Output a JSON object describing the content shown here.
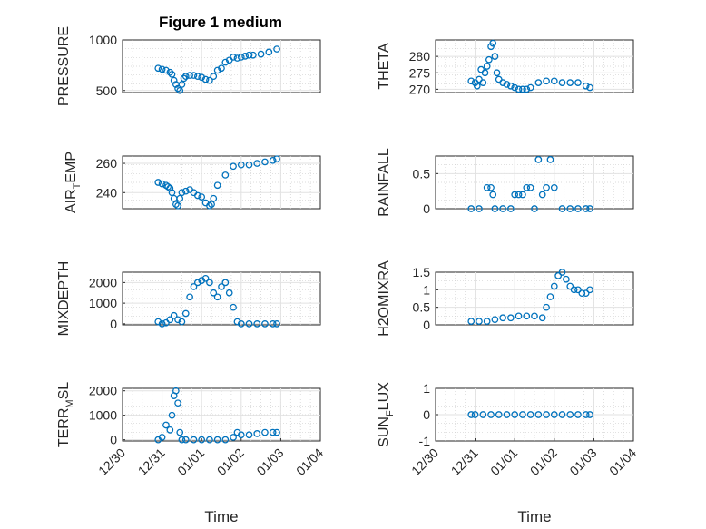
{
  "figure_title": "Figure 1 medium",
  "colors": {
    "marker": "#0072BD",
    "axis": "#262626",
    "grid": "#e2e2e2"
  },
  "chart_data": [
    {
      "type": "scatter",
      "ylabel": "PRESSURE",
      "ylabel_main": "PRESSURE",
      "ylabel_sub": "",
      "ylabel_tail": "",
      "ylim": [
        480,
        1000
      ],
      "yticks": [
        500,
        1000
      ],
      "ytick_labels": [
        "500",
        "1000"
      ],
      "xlim": [
        0,
        5
      ],
      "x_tick_labels": [],
      "title": "Figure 1 medium",
      "x": [
        0.9,
        1.0,
        1.1,
        1.2,
        1.25,
        1.3,
        1.35,
        1.4,
        1.45,
        1.5,
        1.55,
        1.6,
        1.7,
        1.8,
        1.9,
        2.0,
        2.1,
        2.2,
        2.3,
        2.4,
        2.5,
        2.6,
        2.7,
        2.8,
        2.9,
        3.0,
        3.1,
        3.2,
        3.3,
        3.5,
        3.7,
        3.9
      ],
      "y": [
        720,
        710,
        700,
        680,
        660,
        600,
        560,
        520,
        500,
        560,
        620,
        640,
        650,
        650,
        640,
        630,
        610,
        600,
        640,
        700,
        720,
        780,
        800,
        830,
        820,
        830,
        840,
        850,
        850,
        860,
        880,
        910
      ]
    },
    {
      "type": "scatter",
      "ylabel": "THETA",
      "ylabel_main": "THETA",
      "ylabel_sub": "",
      "ylabel_tail": "",
      "ylim": [
        269,
        285
      ],
      "yticks": [
        270,
        275,
        280
      ],
      "ytick_labels": [
        "270",
        "275",
        "280"
      ],
      "xlim": [
        0,
        5
      ],
      "x_tick_labels": [],
      "x": [
        0.9,
        1.0,
        1.05,
        1.1,
        1.15,
        1.2,
        1.25,
        1.3,
        1.35,
        1.4,
        1.45,
        1.5,
        1.55,
        1.6,
        1.7,
        1.8,
        1.9,
        2.0,
        2.1,
        2.2,
        2.3,
        2.4,
        2.6,
        2.8,
        3.0,
        3.2,
        3.4,
        3.6,
        3.8,
        3.9
      ],
      "y": [
        272.5,
        272,
        271,
        273,
        276,
        272,
        275,
        277,
        279,
        283,
        284,
        280,
        275,
        273,
        272,
        271.5,
        271,
        270.5,
        270,
        270,
        270,
        270.5,
        272,
        272.5,
        272.5,
        272,
        272,
        272,
        271,
        270.5
      ]
    },
    {
      "type": "scatter",
      "ylabel": "AIR_TEMP",
      "ylabel_main": "AIR",
      "ylabel_sub": "T",
      "ylabel_tail": "EMP",
      "ylim": [
        229,
        265
      ],
      "yticks": [
        240,
        260
      ],
      "ytick_labels": [
        "240",
        "260"
      ],
      "xlim": [
        0,
        5
      ],
      "x_tick_labels": [],
      "x": [
        0.9,
        1.0,
        1.1,
        1.15,
        1.2,
        1.25,
        1.3,
        1.35,
        1.4,
        1.45,
        1.5,
        1.6,
        1.7,
        1.8,
        1.9,
        2.0,
        2.1,
        2.2,
        2.25,
        2.3,
        2.4,
        2.6,
        2.8,
        3.0,
        3.2,
        3.4,
        3.6,
        3.8,
        3.9
      ],
      "y": [
        247,
        246,
        245,
        244,
        243,
        240,
        236,
        232,
        231,
        236,
        240,
        241,
        242,
        240,
        238,
        237,
        233,
        231,
        232,
        236,
        245,
        252,
        258,
        259,
        259,
        260,
        261,
        262,
        263
      ]
    },
    {
      "type": "scatter",
      "ylabel": "RAINFALL",
      "ylabel_main": "RAINFALL",
      "ylabel_sub": "",
      "ylabel_tail": "",
      "ylim": [
        0,
        0.75
      ],
      "yticks": [
        0,
        0.5
      ],
      "ytick_labels": [
        "0",
        "0.5"
      ],
      "xlim": [
        0,
        5
      ],
      "x_tick_labels": [],
      "x": [
        0.9,
        1.1,
        1.3,
        1.4,
        1.45,
        1.5,
        1.7,
        1.9,
        2.0,
        2.1,
        2.2,
        2.3,
        2.4,
        2.5,
        2.6,
        2.7,
        2.8,
        2.9,
        3.0,
        3.2,
        3.4,
        3.6,
        3.8,
        3.9
      ],
      "y": [
        0,
        0,
        0.3,
        0.3,
        0.2,
        0,
        0,
        0,
        0.2,
        0.2,
        0.2,
        0.3,
        0.3,
        0,
        0.7,
        0.2,
        0.3,
        0.7,
        0.3,
        0,
        0,
        0,
        0,
        0
      ]
    },
    {
      "type": "scatter",
      "ylabel": "MIXDEPTH",
      "ylabel_main": "MIXDEPTH",
      "ylabel_sub": "",
      "ylabel_tail": "",
      "ylim": [
        -50,
        2500
      ],
      "yticks": [
        0,
        1000,
        2000
      ],
      "ytick_labels": [
        "0",
        "1000",
        "2000"
      ],
      "xlim": [
        0,
        5
      ],
      "x_tick_labels": [],
      "x": [
        0.9,
        1.0,
        1.1,
        1.2,
        1.3,
        1.4,
        1.5,
        1.6,
        1.7,
        1.8,
        1.9,
        2.0,
        2.1,
        2.2,
        2.3,
        2.4,
        2.5,
        2.6,
        2.7,
        2.8,
        2.9,
        3.0,
        3.2,
        3.4,
        3.6,
        3.8,
        3.9
      ],
      "y": [
        100,
        0,
        50,
        200,
        400,
        200,
        100,
        500,
        1300,
        1800,
        2000,
        2100,
        2200,
        2000,
        1500,
        1300,
        1800,
        2000,
        1500,
        800,
        100,
        0,
        0,
        0,
        0,
        0,
        0
      ]
    },
    {
      "type": "scatter",
      "ylabel": "H2OMIXRA",
      "ylabel_main": "H2OMIXRA",
      "ylabel_sub": "",
      "ylabel_tail": "",
      "ylim": [
        0,
        1.5
      ],
      "yticks": [
        0,
        0.5,
        1,
        1.5
      ],
      "ytick_labels": [
        "0",
        "0.5",
        "1",
        "1.5"
      ],
      "xlim": [
        0,
        5
      ],
      "x_tick_labels": [],
      "x": [
        0.9,
        1.1,
        1.3,
        1.5,
        1.7,
        1.9,
        2.1,
        2.3,
        2.5,
        2.7,
        2.8,
        2.9,
        3.0,
        3.1,
        3.2,
        3.3,
        3.4,
        3.5,
        3.6,
        3.7,
        3.8,
        3.9
      ],
      "y": [
        0.1,
        0.1,
        0.1,
        0.15,
        0.2,
        0.2,
        0.25,
        0.25,
        0.25,
        0.2,
        0.5,
        0.8,
        1.1,
        1.4,
        1.5,
        1.3,
        1.1,
        1.0,
        1.0,
        0.9,
        0.9,
        1.0
      ]
    },
    {
      "type": "scatter",
      "ylabel": "TERR_MSL",
      "ylabel_main": "TERR",
      "ylabel_sub": "M",
      "ylabel_tail": "SL",
      "ylim": [
        -50,
        2100
      ],
      "yticks": [
        0,
        1000,
        2000
      ],
      "ytick_labels": [
        "0",
        "1000",
        "2000"
      ],
      "xlim": [
        0,
        5
      ],
      "x_tick_labels": [
        "12/30",
        "12/31",
        "01/01",
        "01/02",
        "01/03",
        "01/04"
      ],
      "xlabel": "Time",
      "x": [
        0.9,
        1.0,
        1.1,
        1.2,
        1.25,
        1.3,
        1.35,
        1.4,
        1.45,
        1.5,
        1.6,
        1.8,
        2.0,
        2.2,
        2.4,
        2.6,
        2.8,
        2.9,
        3.0,
        3.2,
        3.4,
        3.6,
        3.8,
        3.9
      ],
      "y": [
        0,
        100,
        600,
        400,
        1000,
        1800,
        2000,
        1500,
        300,
        0,
        0,
        0,
        0,
        0,
        0,
        0,
        100,
        300,
        200,
        200,
        250,
        300,
        300,
        300
      ]
    },
    {
      "type": "scatter",
      "ylabel": "SUN_FLUX",
      "ylabel_main": "SUN",
      "ylabel_sub": "F",
      "ylabel_tail": "LUX",
      "ylim": [
        -1,
        1
      ],
      "yticks": [
        -1,
        0,
        1
      ],
      "ytick_labels": [
        "-1",
        "0",
        "1"
      ],
      "xlim": [
        0,
        5
      ],
      "x_tick_labels": [
        "12/30",
        "12/31",
        "01/01",
        "01/02",
        "01/03",
        "01/04"
      ],
      "xlabel": "Time",
      "x": [
        0.9,
        1.0,
        1.2,
        1.4,
        1.6,
        1.8,
        2.0,
        2.2,
        2.4,
        2.6,
        2.8,
        3.0,
        3.2,
        3.4,
        3.6,
        3.8,
        3.9
      ],
      "y": [
        0,
        0,
        0,
        0,
        0,
        0,
        0,
        0,
        0,
        0,
        0,
        0,
        0,
        0,
        0,
        0,
        0
      ]
    }
  ]
}
